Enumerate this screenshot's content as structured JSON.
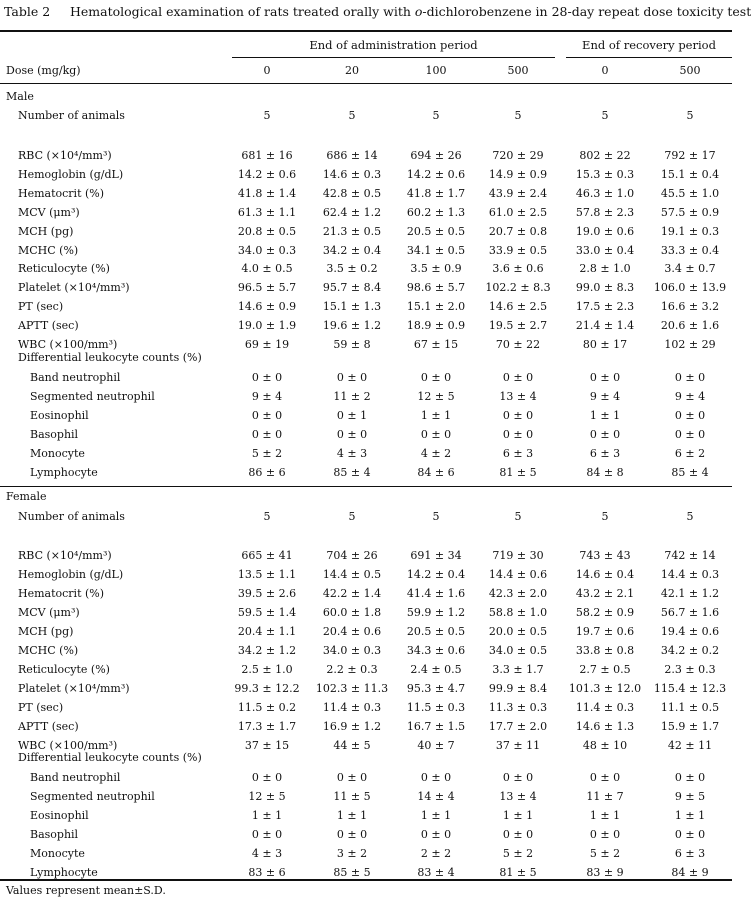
{
  "title": {
    "number": "Table 2",
    "caption_pre": "Hematological examination of rats treated orally with ",
    "caption_italic": "o",
    "caption_post": "-dichlorobenzene in 28-day repeat dose toxicity test"
  },
  "header": {
    "group_admin": "End of administration period",
    "group_recovery": "End of recovery period",
    "dose_label": "Dose (mg/kg)",
    "doses": [
      "0",
      "20",
      "100",
      "500",
      "0",
      "500"
    ]
  },
  "sections": [
    {
      "name": "Male",
      "number_label": "Number of animals",
      "number_values": [
        "5",
        "5",
        "5",
        "5",
        "5",
        "5"
      ],
      "params": [
        {
          "label": "RBC (×10⁴/mm³)",
          "values": [
            "681 ± 16",
            "686 ± 14",
            "694 ± 26",
            "720 ± 29",
            "802 ± 22",
            "792 ± 17"
          ]
        },
        {
          "label": "Hemoglobin (g/dL)",
          "values": [
            "14.2 ± 0.6",
            "14.6 ± 0.3",
            "14.2 ± 0.6",
            "14.9 ± 0.9",
            "15.3 ± 0.3",
            "15.1 ± 0.4"
          ]
        },
        {
          "label": "Hematocrit (%)",
          "values": [
            "41.8 ± 1.4",
            "42.8 ± 0.5",
            "41.8 ± 1.7",
            "43.9 ± 2.4",
            "46.3 ± 1.0",
            "45.5 ± 1.0"
          ]
        },
        {
          "label": "MCV (μm³)",
          "values": [
            "61.3 ± 1.1",
            "62.4 ± 1.2",
            "60.2 ± 1.3",
            "61.0 ± 2.5",
            "57.8 ± 2.3",
            "57.5 ± 0.9"
          ]
        },
        {
          "label": "MCH (pg)",
          "values": [
            "20.8 ± 0.5",
            "21.3 ± 0.5",
            "20.5 ± 0.5",
            "20.7 ± 0.8",
            "19.0 ± 0.6",
            "19.1 ± 0.3"
          ]
        },
        {
          "label": "MCHC (%)",
          "values": [
            "34.0 ± 0.3",
            "34.2 ± 0.4",
            "34.1 ± 0.5",
            "33.9 ± 0.5",
            "33.0 ± 0.4",
            "33.3 ± 0.4"
          ]
        },
        {
          "label": "Reticulocyte (%)",
          "values": [
            "4.0 ± 0.5",
            "3.5 ± 0.2",
            "3.5 ± 0.9",
            "3.6 ± 0.6",
            "2.8 ± 1.0",
            "3.4 ± 0.7"
          ]
        },
        {
          "label": "Platelet (×10⁴/mm³)",
          "values": [
            "96.5 ± 5.7",
            "95.7 ± 8.4",
            "98.6 ± 5.7",
            "102.2 ± 8.3",
            "99.0 ± 8.3",
            "106.0 ± 13.9"
          ]
        },
        {
          "label": "PT (sec)",
          "values": [
            "14.6 ± 0.9",
            "15.1 ± 1.3",
            "15.1 ± 2.0",
            "14.6 ± 2.5",
            "17.5 ± 2.3",
            "16.6 ± 3.2"
          ]
        },
        {
          "label": "APTT (sec)",
          "values": [
            "19.0 ± 1.9",
            "19.6 ± 1.2",
            "18.9 ± 0.9",
            "19.5 ± 2.7",
            "21.4 ± 1.4",
            "20.6 ± 1.6"
          ]
        },
        {
          "label": "WBC (×100/mm³)",
          "values": [
            "69 ± 19",
            "59 ± 8",
            "67 ± 15",
            "70 ± 22",
            "80 ± 17",
            "102 ± 29"
          ]
        }
      ],
      "diff_label": "Differential leukocyte counts (%)",
      "diff": [
        {
          "label": "Band neutrophil",
          "values": [
            "0 ± 0",
            "0 ± 0",
            "0 ± 0",
            "0 ± 0",
            "0 ± 0",
            "0 ± 0"
          ]
        },
        {
          "label": "Segmented neutrophil",
          "values": [
            "9 ± 4",
            "11 ± 2",
            "12 ± 5",
            "13 ± 4",
            "9 ± 4",
            "9 ± 4"
          ]
        },
        {
          "label": "Eosinophil",
          "values": [
            "0 ± 0",
            "0 ± 1",
            "1 ± 1",
            "0 ± 0",
            "1 ± 1",
            "0 ± 0"
          ]
        },
        {
          "label": "Basophil",
          "values": [
            "0 ± 0",
            "0 ± 0",
            "0 ± 0",
            "0 ± 0",
            "0 ± 0",
            "0 ± 0"
          ]
        },
        {
          "label": "Monocyte",
          "values": [
            "5 ± 2",
            "4 ± 3",
            "4 ± 2",
            "6 ± 3",
            "6 ± 3",
            "6 ± 2"
          ]
        },
        {
          "label": "Lymphocyte",
          "values": [
            "86 ± 6",
            "85 ± 4",
            "84 ± 6",
            "81 ± 5",
            "84 ± 8",
            "85 ± 4"
          ]
        }
      ]
    },
    {
      "name": "Female",
      "number_label": "Number of animals",
      "number_values": [
        "5",
        "5",
        "5",
        "5",
        "5",
        "5"
      ],
      "params": [
        {
          "label": "RBC (×10⁴/mm³)",
          "values": [
            "665 ± 41",
            "704 ± 26",
            "691 ± 34",
            "719 ± 30",
            "743 ± 43",
            "742 ± 14"
          ]
        },
        {
          "label": "Hemoglobin (g/dL)",
          "values": [
            "13.5 ± 1.1",
            "14.4 ± 0.5",
            "14.2 ± 0.4",
            "14.4 ± 0.6",
            "14.6 ± 0.4",
            "14.4 ± 0.3"
          ]
        },
        {
          "label": "Hematocrit (%)",
          "values": [
            "39.5 ± 2.6",
            "42.2 ± 1.4",
            "41.4 ± 1.6",
            "42.3 ± 2.0",
            "43.2 ± 2.1",
            "42.1 ± 1.2"
          ]
        },
        {
          "label": "MCV (μm³)",
          "values": [
            "59.5 ± 1.4",
            "60.0 ± 1.8",
            "59.9 ± 1.2",
            "58.8 ± 1.0",
            "58.2 ± 0.9",
            "56.7 ± 1.6"
          ]
        },
        {
          "label": "MCH (pg)",
          "values": [
            "20.4 ± 1.1",
            "20.4 ± 0.6",
            "20.5 ± 0.5",
            "20.0 ± 0.5",
            "19.7 ± 0.6",
            "19.4 ± 0.6"
          ]
        },
        {
          "label": "MCHC (%)",
          "values": [
            "34.2 ± 1.2",
            "34.0 ± 0.3",
            "34.3 ± 0.6",
            "34.0 ± 0.5",
            "33.8 ± 0.8",
            "34.2 ± 0.2"
          ]
        },
        {
          "label": "Reticulocyte (%)",
          "values": [
            "2.5 ± 1.0",
            "2.2 ± 0.3",
            "2.4 ± 0.5",
            "3.3 ± 1.7",
            "2.7 ± 0.5",
            "2.3 ± 0.3"
          ]
        },
        {
          "label": "Platelet (×10⁴/mm³)",
          "values": [
            "99.3 ± 12.2",
            "102.3 ± 11.3",
            "95.3 ± 4.7",
            "99.9 ± 8.4",
            "101.3 ± 12.0",
            "115.4 ± 12.3"
          ]
        },
        {
          "label": "PT (sec)",
          "values": [
            "11.5 ± 0.2",
            "11.4 ± 0.3",
            "11.5 ± 0.3",
            "11.3 ± 0.3",
            "11.4 ± 0.3",
            "11.1 ± 0.5"
          ]
        },
        {
          "label": "APTT (sec)",
          "values": [
            "17.3 ± 1.7",
            "16.9 ± 1.2",
            "16.7 ± 1.5",
            "17.7 ± 2.0",
            "14.6 ± 1.3",
            "15.9 ± 1.7"
          ]
        },
        {
          "label": "WBC (×100/mm³)",
          "values": [
            "37 ± 15",
            "44 ± 5",
            "40 ± 7",
            "37 ± 11",
            "48 ± 10",
            "42 ± 11"
          ]
        }
      ],
      "diff_label": "Differential leukocyte counts (%)",
      "diff": [
        {
          "label": "Band neutrophil",
          "values": [
            "0 ± 0",
            "0 ± 0",
            "0 ± 0",
            "0 ± 0",
            "0 ± 0",
            "0 ± 0"
          ]
        },
        {
          "label": "Segmented neutrophil",
          "values": [
            "12 ± 5",
            "11 ± 5",
            "14 ± 4",
            "13 ± 4",
            "11 ± 7",
            "9 ± 5"
          ]
        },
        {
          "label": "Eosinophil",
          "values": [
            "1 ± 1",
            "1 ± 1",
            "1 ± 1",
            "1 ± 1",
            "1 ± 1",
            "1 ± 1"
          ]
        },
        {
          "label": "Basophil",
          "values": [
            "0 ± 0",
            "0 ± 0",
            "0 ± 0",
            "0 ± 0",
            "0 ± 0",
            "0 ± 0"
          ]
        },
        {
          "label": "Monocyte",
          "values": [
            "4 ± 3",
            "3 ± 2",
            "2 ± 2",
            "5 ± 2",
            "5 ± 2",
            "6 ± 3"
          ]
        },
        {
          "label": "Lymphocyte",
          "values": [
            "83 ± 6",
            "85 ± 5",
            "83 ± 4",
            "81 ± 5",
            "83 ± 9",
            "84 ± 9"
          ]
        }
      ]
    }
  ],
  "footnote": "Values represent mean±S.D."
}
